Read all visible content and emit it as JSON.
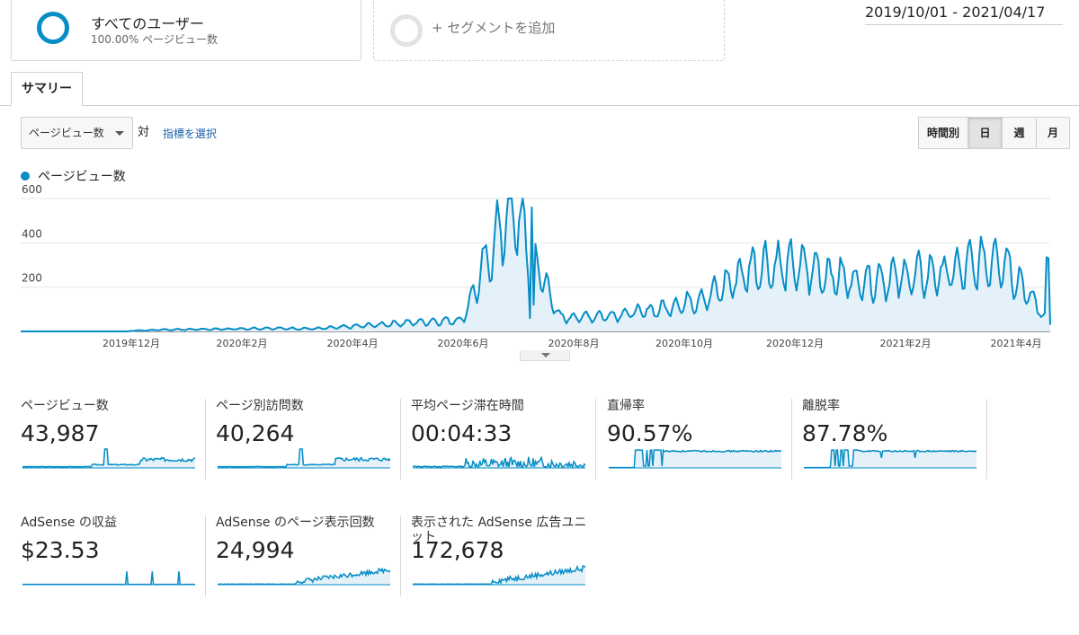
{
  "segments": {
    "primary": {
      "title": "すべてのユーザー",
      "subtitle": "100.00% ページビュー数"
    },
    "add_label": "+ セグメントを追加"
  },
  "date_range": "2019/10/01 - 2021/04/17",
  "tabs": {
    "summary": "サマリー"
  },
  "controls": {
    "metric_select": "ページビュー数",
    "vs_label": "対",
    "pick_metric_link": "指標を選択",
    "periods": [
      "時間別",
      "日",
      "週",
      "月"
    ],
    "active_period": "日"
  },
  "legend": {
    "series_name": "ページビュー数"
  },
  "colors": {
    "accent": "#058dc7",
    "fill": "#e4f1f8"
  },
  "chart_data": {
    "type": "area",
    "ylim": [
      0,
      600
    ],
    "y_ticks": [
      "600",
      "400",
      "200"
    ],
    "x_tick_labels": [
      "2019年12月",
      "2020年2月",
      "2020年4月",
      "2020年6月",
      "2020年8月",
      "2020年10月",
      "2020年12月",
      "2021年2月",
      "2021年4月"
    ],
    "series": [
      {
        "name": "ページビュー数",
        "x": [
          "2019-10",
          "2019-11",
          "2019-12",
          "2020-01",
          "2020-02",
          "2020-03",
          "2020-04",
          "2020-05",
          "2020-06",
          "2020-07",
          "2020-07",
          "2020-08",
          "2020-09",
          "2020-10",
          "2020-11",
          "2020-11",
          "2020-12",
          "2021-01",
          "2021-02",
          "2021-03",
          "2021-04",
          "2021-04"
        ],
        "values": [
          0,
          0,
          1,
          8,
          10,
          14,
          12,
          25,
          40,
          50,
          560,
          60,
          70,
          95,
          150,
          290,
          280,
          220,
          240,
          260,
          330,
          30
        ]
      }
    ]
  },
  "scorecards": [
    {
      "label": "ページビュー数",
      "value": "43,987"
    },
    {
      "label": "ページ別訪問数",
      "value": "40,264"
    },
    {
      "label": "平均ページ滞在時間",
      "value": "00:04:33"
    },
    {
      "label": "直帰率",
      "value": "90.57%"
    },
    {
      "label": "離脱率",
      "value": "87.78%"
    },
    {
      "label": "AdSense の収益",
      "value": "$23.53"
    },
    {
      "label": "AdSense のページ表示回数",
      "value": "24,994"
    },
    {
      "label": "表示された AdSense 広告ユニット",
      "value": "172,678"
    }
  ]
}
